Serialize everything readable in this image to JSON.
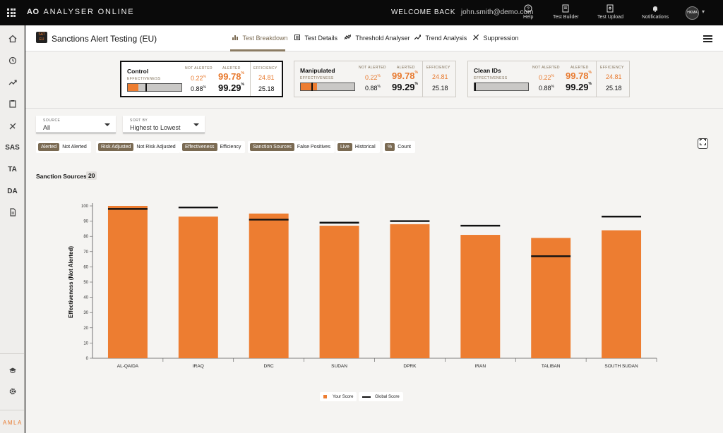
{
  "topbar": {
    "brand_mark": "AO",
    "brand_name": "ANALYSER ONLINE",
    "welcome": "WELCOME BACK",
    "email": "john.smith@demo.com",
    "buttons": [
      {
        "label": "Help",
        "icon": "help-icon"
      },
      {
        "label": "Test Builder",
        "icon": "test-builder-icon"
      },
      {
        "label": "Test Upload",
        "icon": "upload-icon"
      },
      {
        "label": "Notifications",
        "icon": "bell-icon"
      }
    ],
    "avatar": "HKMA"
  },
  "sidebar": {
    "text_items": [
      "SAS",
      "TA",
      "DA"
    ],
    "footer_logo": "AMLA"
  },
  "header": {
    "logo_text": "SAT EU",
    "title": "Sanctions Alert Testing (EU)",
    "tabs": [
      {
        "label": "Test Breakdown",
        "active": true
      },
      {
        "label": "Test Details",
        "active": false
      },
      {
        "label": "Threshold Analyser",
        "active": false
      },
      {
        "label": "Trend Analysis",
        "active": false
      },
      {
        "label": "Suppression",
        "active": false
      }
    ]
  },
  "cards": [
    {
      "title": "Control",
      "eff_label": "EFFECTIVENESS",
      "hdr_not_alerted": "NOT ALERTED",
      "hdr_alerted": "ALERTED",
      "hdr_efficiency": "EFFICIENCY",
      "not_alerted_1": "0.22",
      "alerted_1": "99.78",
      "efficiency_1": "24.81",
      "not_alerted_2": "0.88",
      "alerted_2": "99.29",
      "efficiency_2": "25.18",
      "unit": "%",
      "bar_fill": 0.2,
      "bar_marker": 0.33,
      "selected": true
    },
    {
      "title": "Manipulated",
      "eff_label": "EFFECTIVENESS",
      "hdr_not_alerted": "NOT ALERTED",
      "hdr_alerted": "ALERTED",
      "hdr_efficiency": "EFFICIENCY",
      "not_alerted_1": "0.22",
      "alerted_1": "99.78",
      "efficiency_1": "24.81",
      "not_alerted_2": "0.88",
      "alerted_2": "99.29",
      "efficiency_2": "25.18",
      "unit": "%",
      "bar_fill": 0.3,
      "bar_marker": 0.2,
      "selected": false
    },
    {
      "title": "Clean IDs",
      "eff_label": "EFFECTIVENESS",
      "hdr_not_alerted": "NOT ALERTED",
      "hdr_alerted": "ALERTED",
      "hdr_efficiency": "EFFICIENCY",
      "not_alerted_1": "0.22",
      "alerted_1": "99.78",
      "efficiency_1": "24.81",
      "not_alerted_2": "0.88",
      "alerted_2": "99.29",
      "efficiency_2": "25.18",
      "unit": "%",
      "bar_fill": 0.0,
      "bar_marker": 0.0,
      "selected": false
    }
  ],
  "filters": {
    "source": {
      "label": "SOURCE",
      "value": "All"
    },
    "sort": {
      "label": "SORT BY",
      "value": "Highest to Lowest"
    }
  },
  "toggles": [
    {
      "on": "Alerted",
      "off": "Not Alerted"
    },
    {
      "on": "Risk Adjusted",
      "off": "Not Risk Adjusted"
    },
    {
      "on": "Effectiveness",
      "off": "Efficiency"
    },
    {
      "on": "Sanction Sources",
      "off": "False Positives"
    },
    {
      "on": "Live",
      "off": "Historical"
    },
    {
      "on": "%",
      "off": "Count"
    }
  ],
  "section": {
    "title": "Sanction Sources",
    "count": "20"
  },
  "colors": {
    "accent": "#ed7d31",
    "brown": "#7a6a52",
    "global_line": "#111111"
  },
  "chart_data": {
    "type": "bar",
    "ylabel": "Effectiveness (Not Alerted)",
    "ylim": [
      0,
      100
    ],
    "yticks": [
      0,
      10,
      20,
      30,
      40,
      50,
      60,
      70,
      80,
      90,
      100
    ],
    "categories": [
      "AL-QAIDA",
      "IRAQ",
      "DRC",
      "SUDAN",
      "DPRK",
      "IRAN",
      "TALIBAN",
      "SOUTH SUDAN"
    ],
    "series": [
      {
        "name": "Your Score",
        "kind": "bar",
        "values": [
          100,
          93,
          95,
          87,
          88,
          81,
          79,
          84
        ]
      },
      {
        "name": "Global Score",
        "kind": "marker",
        "values": [
          98,
          99,
          91,
          89,
          90,
          87,
          67,
          93
        ]
      }
    ],
    "legend": "bottom-center"
  }
}
